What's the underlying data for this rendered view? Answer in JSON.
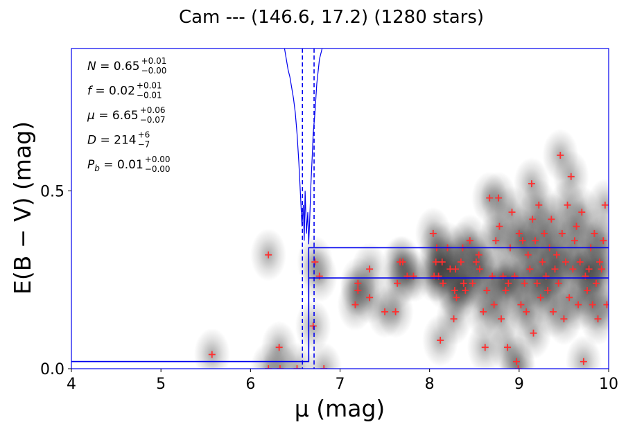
{
  "title": "Cam --- (146.6, 17.2) (1280 stars)",
  "chart_data": {
    "type": "scatter",
    "title": "Cam --- (146.6, 17.2) (1280 stars)",
    "xlabel": "μ (mag)",
    "ylabel": "E(B − V) (mag)",
    "xlim": [
      4,
      10
    ],
    "ylim": [
      0,
      0.9
    ],
    "x_ticks": [
      "4",
      "5",
      "6",
      "7",
      "8",
      "9",
      "10"
    ],
    "y_ticks": [
      "0.0",
      "0.5"
    ],
    "grid": false,
    "colors": {
      "points": "#ff3030",
      "model": "#0000ee",
      "frame": "#0000ee"
    },
    "annotations": [
      {
        "name": "N",
        "value": "0.65",
        "plus": "+0.01",
        "minus": "−0.00"
      },
      {
        "name": "f",
        "value": "0.02",
        "plus": "+0.01",
        "minus": "−0.01"
      },
      {
        "name": "μ",
        "value": "6.65",
        "plus": "+0.06",
        "minus": "−0.07"
      },
      {
        "name": "D",
        "value": "214",
        "plus": "+6",
        "minus": "−7"
      },
      {
        "name": "P_b",
        "value": "0.01",
        "plus": "+0.00",
        "minus": "−0.00"
      }
    ],
    "step_model": {
      "x": [
        4,
        6.65,
        6.65,
        10
      ],
      "y": [
        0.02,
        0.02,
        0.3,
        0.3
      ],
      "band_upper": [
        0.02,
        0.02,
        0.34,
        0.34
      ],
      "band_lower": [
        0.02,
        0.02,
        0.255,
        0.255
      ]
    },
    "distance_markers": [
      6.58,
      6.65,
      6.71
    ],
    "probability_curve": [
      [
        6.38,
        0.9
      ],
      [
        6.4,
        0.87
      ],
      [
        6.42,
        0.84
      ],
      [
        6.44,
        0.82
      ],
      [
        6.46,
        0.79
      ],
      [
        6.48,
        0.76
      ],
      [
        6.5,
        0.72
      ],
      [
        6.52,
        0.66
      ],
      [
        6.54,
        0.58
      ],
      [
        6.56,
        0.48
      ],
      [
        6.575,
        0.4
      ],
      [
        6.59,
        0.46
      ],
      [
        6.6,
        0.36
      ],
      [
        6.61,
        0.5
      ],
      [
        6.625,
        0.38
      ],
      [
        6.64,
        0.44
      ],
      [
        6.65,
        0.35
      ],
      [
        6.66,
        0.41
      ],
      [
        6.675,
        0.52
      ],
      [
        6.69,
        0.6
      ],
      [
        6.7,
        0.66
      ],
      [
        6.72,
        0.72
      ],
      [
        6.74,
        0.8
      ],
      [
        6.77,
        0.87
      ],
      [
        6.8,
        0.9
      ]
    ],
    "points": [
      [
        5.57,
        0.04
      ],
      [
        6.2,
        0.32
      ],
      [
        6.2,
        0.0
      ],
      [
        6.32,
        0.06
      ],
      [
        6.33,
        0.0
      ],
      [
        6.52,
        0.0
      ],
      [
        6.72,
        0.3
      ],
      [
        6.7,
        0.12
      ],
      [
        6.77,
        0.26
      ],
      [
        6.82,
        0.0
      ],
      [
        7.17,
        0.18
      ],
      [
        7.2,
        0.24
      ],
      [
        7.2,
        0.22
      ],
      [
        7.33,
        0.28
      ],
      [
        7.33,
        0.2
      ],
      [
        7.5,
        0.16
      ],
      [
        7.62,
        0.16
      ],
      [
        7.64,
        0.24
      ],
      [
        7.67,
        0.3
      ],
      [
        7.7,
        0.3
      ],
      [
        7.75,
        0.26
      ],
      [
        7.82,
        0.26
      ],
      [
        8.04,
        0.38
      ],
      [
        8.05,
        0.26
      ],
      [
        8.07,
        0.3
      ],
      [
        8.08,
        0.34
      ],
      [
        8.1,
        0.26
      ],
      [
        8.12,
        0.08
      ],
      [
        8.14,
        0.3
      ],
      [
        8.15,
        0.24
      ],
      [
        8.2,
        0.34
      ],
      [
        8.23,
        0.28
      ],
      [
        8.27,
        0.14
      ],
      [
        8.28,
        0.22
      ],
      [
        8.29,
        0.28
      ],
      [
        8.3,
        0.2
      ],
      [
        8.35,
        0.3
      ],
      [
        8.37,
        0.34
      ],
      [
        8.38,
        0.24
      ],
      [
        8.4,
        0.22
      ],
      [
        8.45,
        0.36
      ],
      [
        8.48,
        0.24
      ],
      [
        8.52,
        0.3
      ],
      [
        8.55,
        0.32
      ],
      [
        8.56,
        0.28
      ],
      [
        8.6,
        0.16
      ],
      [
        8.62,
        0.06
      ],
      [
        8.64,
        0.22
      ],
      [
        8.67,
        0.48
      ],
      [
        8.7,
        0.26
      ],
      [
        8.72,
        0.18
      ],
      [
        8.74,
        0.36
      ],
      [
        8.77,
        0.48
      ],
      [
        8.78,
        0.4
      ],
      [
        8.8,
        0.14
      ],
      [
        8.82,
        0.26
      ],
      [
        8.85,
        0.22
      ],
      [
        8.87,
        0.06
      ],
      [
        8.88,
        0.24
      ],
      [
        8.9,
        0.34
      ],
      [
        8.92,
        0.44
      ],
      [
        8.95,
        0.26
      ],
      [
        8.97,
        0.02
      ],
      [
        8.99,
        0.0
      ],
      [
        9.0,
        0.38
      ],
      [
        9.02,
        0.18
      ],
      [
        9.04,
        0.36
      ],
      [
        9.06,
        0.24
      ],
      [
        9.08,
        0.16
      ],
      [
        9.1,
        0.32
      ],
      [
        9.12,
        0.28
      ],
      [
        9.14,
        0.52
      ],
      [
        9.15,
        0.42
      ],
      [
        9.16,
        0.1
      ],
      [
        9.18,
        0.36
      ],
      [
        9.2,
        0.24
      ],
      [
        9.22,
        0.46
      ],
      [
        9.24,
        0.2
      ],
      [
        9.26,
        0.3
      ],
      [
        9.28,
        0.38
      ],
      [
        9.3,
        0.26
      ],
      [
        9.32,
        0.22
      ],
      [
        9.34,
        0.34
      ],
      [
        9.36,
        0.42
      ],
      [
        9.38,
        0.16
      ],
      [
        9.4,
        0.28
      ],
      [
        9.42,
        0.32
      ],
      [
        9.44,
        0.24
      ],
      [
        9.46,
        0.6
      ],
      [
        9.48,
        0.38
      ],
      [
        9.5,
        0.14
      ],
      [
        9.52,
        0.3
      ],
      [
        9.54,
        0.46
      ],
      [
        9.56,
        0.2
      ],
      [
        9.58,
        0.54
      ],
      [
        9.6,
        0.28
      ],
      [
        9.62,
        0.36
      ],
      [
        9.64,
        0.4
      ],
      [
        9.66,
        0.18
      ],
      [
        9.68,
        0.3
      ],
      [
        9.7,
        0.44
      ],
      [
        9.72,
        0.02
      ],
      [
        9.74,
        0.26
      ],
      [
        9.76,
        0.22
      ],
      [
        9.78,
        0.28
      ],
      [
        9.8,
        0.34
      ],
      [
        9.82,
        0.18
      ],
      [
        9.84,
        0.38
      ],
      [
        9.86,
        0.24
      ],
      [
        9.88,
        0.14
      ],
      [
        9.9,
        0.3
      ],
      [
        9.92,
        0.28
      ],
      [
        9.94,
        0.36
      ],
      [
        9.96,
        0.46
      ],
      [
        9.98,
        0.18
      ]
    ]
  }
}
